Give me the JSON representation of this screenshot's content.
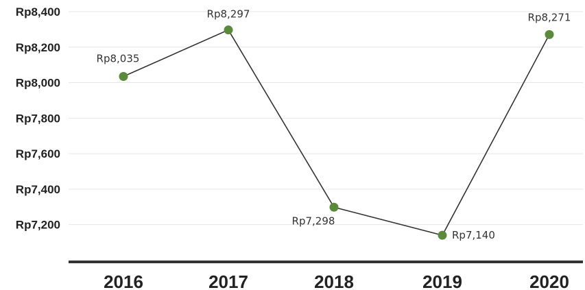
{
  "chart_data": {
    "type": "line",
    "categories": [
      "2016",
      "2017",
      "2018",
      "2019",
      "2020"
    ],
    "series": [
      {
        "values": [
          8035,
          8297,
          7298,
          7140,
          8271
        ],
        "data_labels": [
          "Rp8,035",
          "Rp8,297",
          "Rp7,298",
          "Rp7,140",
          "Rp8,271"
        ]
      }
    ],
    "y_ticks": [
      {
        "value": 7200,
        "label": "Rp7,200"
      },
      {
        "value": 7400,
        "label": "Rp7,400"
      },
      {
        "value": 7600,
        "label": "Rp7,600"
      },
      {
        "value": 7800,
        "label": "Rp7,800"
      },
      {
        "value": 8000,
        "label": "Rp8,000"
      },
      {
        "value": 8200,
        "label": "Rp8,200"
      },
      {
        "value": 8400,
        "label": "Rp8,400"
      }
    ],
    "ylim": [
      6990,
      8400
    ],
    "grid": true,
    "legend": "none",
    "colors": {
      "line": "#333333",
      "marker": "#5b8a3a",
      "grid": "#e6e6e6",
      "axis": "#333333"
    }
  }
}
